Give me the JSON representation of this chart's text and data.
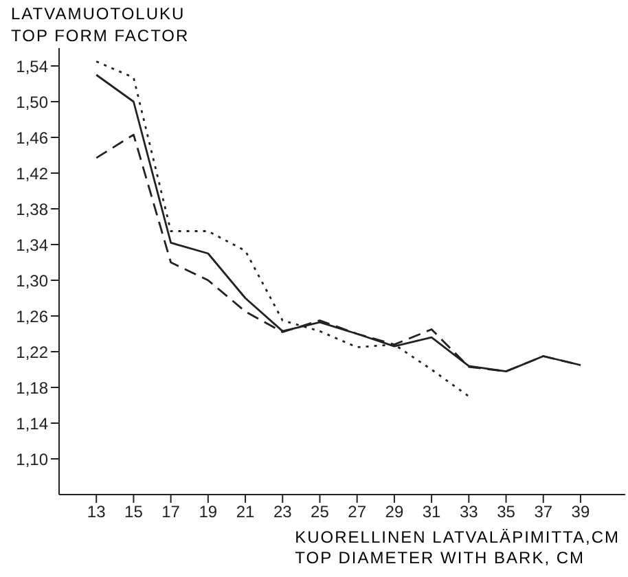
{
  "chart_data": {
    "type": "line",
    "ylabel": "LATVAMUOTOLUKU\nTOP FORM FACTOR",
    "xlabel": "KUORELLINEN LATVALÄPIMITTA,CM\nTOP DIAMETER WITH BARK, CM",
    "x": [
      13,
      15,
      17,
      19,
      21,
      23,
      25,
      27,
      29,
      31,
      33,
      35,
      37,
      39
    ],
    "xlim": [
      11,
      41.4
    ],
    "xticks": [
      13,
      15,
      17,
      19,
      21,
      23,
      25,
      27,
      29,
      31,
      33,
      35,
      37,
      39
    ],
    "ylim": [
      1.06,
      1.56
    ],
    "yticks": [
      {
        "value": 1.1,
        "label": "1,10"
      },
      {
        "value": 1.14,
        "label": "1,14"
      },
      {
        "value": 1.18,
        "label": "1,18"
      },
      {
        "value": 1.22,
        "label": "1,22"
      },
      {
        "value": 1.26,
        "label": "1,26"
      },
      {
        "value": 1.3,
        "label": "1,30"
      },
      {
        "value": 1.34,
        "label": "1,34"
      },
      {
        "value": 1.38,
        "label": "1,38"
      },
      {
        "value": 1.42,
        "label": "1,42"
      },
      {
        "value": 1.46,
        "label": "1,46"
      },
      {
        "value": 1.5,
        "label": "1,50"
      },
      {
        "value": 1.54,
        "label": "1,54"
      }
    ],
    "grid": false,
    "legend": false,
    "marker": "none",
    "series": [
      {
        "color": "#222222",
        "line_style": "solid",
        "values": [
          1.53,
          1.5,
          1.342,
          1.33,
          1.28,
          1.243,
          1.253,
          1.24,
          1.226,
          1.236,
          1.204,
          1.198,
          1.215,
          1.205
        ]
      },
      {
        "color": "#222222",
        "line_style": "dashed",
        "values": [
          1.437,
          1.463,
          1.32,
          1.3,
          1.265,
          1.242,
          1.255,
          1.24,
          1.228,
          1.245,
          1.203,
          1.198,
          1.215,
          1.205
        ]
      },
      {
        "color": "#222222",
        "line_style": "dotted",
        "values": [
          1.545,
          1.527,
          1.355,
          1.355,
          1.333,
          1.255,
          1.243,
          1.225,
          1.228,
          1.2,
          1.17,
          null,
          null,
          null
        ]
      }
    ]
  }
}
